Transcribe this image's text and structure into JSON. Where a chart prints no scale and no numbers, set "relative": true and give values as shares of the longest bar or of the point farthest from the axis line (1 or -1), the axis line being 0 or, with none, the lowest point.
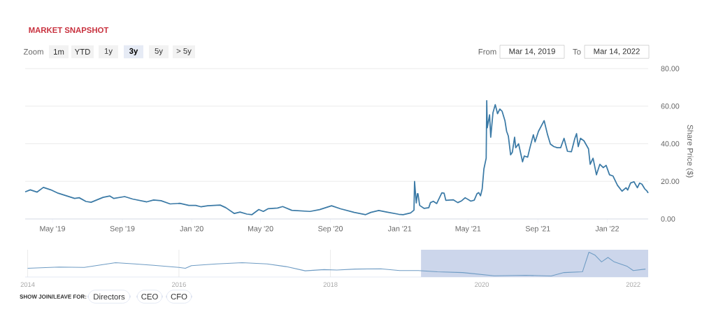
{
  "chart_data": [
    {
      "type": "line",
      "title": "MARKET SNAPSHOT",
      "ylabel": "Share Price ($)",
      "annotations": [
        "Zoom",
        "1m",
        "YTD",
        "1y",
        "3y",
        "5y",
        "> 5y",
        "From",
        "Mar 14, 2019",
        "To",
        "Mar 14, 2022",
        "SHOW JOIN/LEAVE FOR:",
        "Directors",
        "CEO",
        "CFO"
      ],
      "x": [
        "2019-03-14",
        "2019-03-23",
        "2019-04-04",
        "2019-04-15",
        "2019-04-28",
        "2019-05-11",
        "2019-06-09",
        "2019-06-17",
        "2019-06-29",
        "2019-07-08",
        "2019-07-29",
        "2019-08-10",
        "2019-08-17",
        "2019-09-05",
        "2019-09-19",
        "2019-10-14",
        "2019-10-26",
        "2019-11-08",
        "2019-11-24",
        "2019-12-11",
        "2019-12-27",
        "2020-01-08",
        "2020-01-17",
        "2020-01-29",
        "2020-02-20",
        "2020-03-01",
        "2020-03-16",
        "2020-03-26",
        "2020-04-07",
        "2020-04-16",
        "2020-04-28",
        "2020-05-06",
        "2020-05-14",
        "2020-05-31",
        "2020-06-09",
        "2020-06-25",
        "2020-07-11",
        "2020-07-27",
        "2020-08-13",
        "2020-09-03",
        "2020-09-19",
        "2020-10-13",
        "2020-11-02",
        "2020-11-11",
        "2020-11-25",
        "2020-12-09",
        "2020-12-30",
        "2021-01-07",
        "2021-01-20",
        "2021-01-26",
        "2021-01-27",
        "2021-01-30",
        "2021-02-01",
        "2021-02-02",
        "2021-02-05",
        "2021-02-13",
        "2021-02-21",
        "2021-02-24",
        "2021-03-01",
        "2021-03-07",
        "2021-03-16",
        "2021-03-20",
        "2021-03-23",
        "2021-04-05",
        "2021-04-13",
        "2021-04-20",
        "2021-04-26",
        "2021-05-06",
        "2021-05-12",
        "2021-05-17",
        "2021-05-20",
        "2021-05-23",
        "2021-05-26",
        "2021-05-29",
        "2021-06-02",
        "2021-06-03",
        "2021-06-04",
        "2021-06-08",
        "2021-06-10",
        "2021-06-14",
        "2021-06-18",
        "2021-06-22",
        "2021-06-26",
        "2021-06-30",
        "2021-07-05",
        "2021-07-08",
        "2021-07-11",
        "2021-07-15",
        "2021-07-18",
        "2021-07-22",
        "2021-07-24",
        "2021-07-29",
        "2021-08-05",
        "2021-08-08",
        "2021-08-14",
        "2021-08-18",
        "2021-08-24",
        "2021-08-27",
        "2021-09-02",
        "2021-09-12",
        "2021-09-18",
        "2021-09-23",
        "2021-09-29",
        "2021-10-05",
        "2021-10-11",
        "2021-10-17",
        "2021-10-23",
        "2021-10-30",
        "2021-11-05",
        "2021-11-08",
        "2021-11-11",
        "2021-11-15",
        "2021-11-21",
        "2021-11-29",
        "2021-12-02",
        "2021-12-07",
        "2021-12-13",
        "2021-12-19",
        "2021-12-25",
        "2021-12-30",
        "2022-01-05",
        "2022-01-11",
        "2022-01-19",
        "2022-01-27",
        "2022-02-03",
        "2022-02-06",
        "2022-02-11",
        "2022-02-17",
        "2022-02-23",
        "2022-02-27",
        "2022-03-03",
        "2022-03-08",
        "2022-03-12",
        "2022-03-14"
      ],
      "values": [
        14.4,
        15.5,
        14.3,
        16.8,
        15.5,
        13.7,
        10.9,
        11.3,
        9.3,
        8.9,
        11.5,
        12.2,
        10.9,
        11.9,
        10.6,
        9.1,
        10.1,
        9.7,
        8.0,
        8.3,
        7.2,
        7.2,
        6.5,
        7.0,
        7.4,
        6.0,
        2.9,
        3.7,
        2.6,
        2.3,
        5.0,
        4.0,
        5.4,
        5.8,
        6.6,
        4.6,
        4.3,
        4.0,
        5.0,
        7.0,
        5.4,
        3.5,
        2.3,
        3.5,
        4.5,
        3.7,
        2.5,
        2.3,
        3.2,
        4.7,
        20.0,
        8.5,
        13.4,
        13.4,
        7.2,
        5.6,
        6.0,
        8.7,
        9.4,
        8.2,
        13.9,
        13.7,
        9.9,
        10.2,
        8.7,
        9.7,
        11.3,
        9.5,
        10.0,
        13.5,
        14.0,
        12.3,
        16.0,
        26.6,
        32.3,
        62.9,
        48.5,
        55.4,
        43.5,
        56.6,
        60.8,
        56.0,
        58.5,
        57.3,
        52.3,
        46.6,
        44.1,
        34.1,
        35.4,
        43.5,
        37.9,
        40.0,
        30.4,
        33.5,
        32.9,
        37.9,
        44.8,
        41.0,
        46.6,
        52.3,
        44.8,
        39.8,
        38.5,
        37.9,
        37.9,
        42.9,
        36.0,
        35.8,
        42.9,
        45.4,
        38.5,
        42.9,
        41.6,
        37.3,
        29.1,
        32.3,
        23.5,
        29.1,
        27.3,
        28.5,
        23.5,
        22.9,
        17.9,
        14.8,
        16.6,
        15.4,
        19.1,
        19.8,
        16.6,
        19.1,
        18.5,
        16.0,
        14.8,
        13.8
      ],
      "color": "#3b7aa6",
      "xlim": [
        "2019-03-14",
        "2022-03-14"
      ],
      "xticks": [
        {
          "value": "2019-05-01",
          "label": "May '19"
        },
        {
          "value": "2019-09-01",
          "label": "Sep '19"
        },
        {
          "value": "2020-01-01",
          "label": "Jan '20"
        },
        {
          "value": "2020-05-01",
          "label": "May '20"
        },
        {
          "value": "2020-09-01",
          "label": "Sep '20"
        },
        {
          "value": "2021-01-01",
          "label": "Jan '21"
        },
        {
          "value": "2021-05-01",
          "label": "May '21"
        },
        {
          "value": "2021-09-01",
          "label": "Sep '21"
        },
        {
          "value": "2022-01-01",
          "label": "Jan '22"
        }
      ],
      "ylim": [
        0,
        80
      ],
      "yticks": [
        {
          "value": 0,
          "label": "0.00"
        },
        {
          "value": 20,
          "label": "20.00"
        },
        {
          "value": 40,
          "label": "40.00"
        },
        {
          "value": 60,
          "label": "60.00"
        },
        {
          "value": 80,
          "label": "80.00"
        }
      ],
      "grid": "y"
    },
    {
      "type": "line",
      "relative": true,
      "x": [
        "2014-01",
        "2014-06",
        "2014-10",
        "2015-03",
        "2015-06",
        "2015-09",
        "2016-01",
        "2016-02",
        "2016-03",
        "2016-07",
        "2016-11",
        "2017-03",
        "2017-06",
        "2017-09",
        "2017-12",
        "2018-02",
        "2018-05",
        "2018-09",
        "2018-12",
        "2019-03",
        "2019-06",
        "2019-10",
        "2020-03",
        "2020-08",
        "2020-12",
        "2021-02",
        "2021-05",
        "2021-06",
        "2021-07",
        "2021-08",
        "2021-09",
        "2021-10",
        "2021-12",
        "2022-01",
        "2022-03"
      ],
      "values": [
        0.35,
        0.4,
        0.39,
        0.58,
        0.53,
        0.47,
        0.39,
        0.35,
        0.46,
        0.53,
        0.58,
        0.53,
        0.42,
        0.25,
        0.3,
        0.28,
        0.32,
        0.33,
        0.26,
        0.26,
        0.21,
        0.18,
        0.05,
        0.07,
        0.04,
        0.18,
        0.21,
        1,
        0.88,
        0.61,
        0.79,
        0.61,
        0.44,
        0.26,
        0.32
      ],
      "color": "#6f9cc4",
      "xlim": [
        "2013-12-20",
        "2022-03-14"
      ],
      "xticks": [
        {
          "value": "2014-01-01",
          "label": "2014"
        },
        {
          "value": "2016-01-01",
          "label": "2016"
        },
        {
          "value": "2018-01-01",
          "label": "2018"
        },
        {
          "value": "2020-01-01",
          "label": "2020"
        },
        {
          "value": "2022-01-01",
          "label": "2022"
        }
      ],
      "grid": "x",
      "bands": [
        {
          "axis": "x",
          "from": "2019-03-14",
          "to": "2022-03-14",
          "color": "#ccd6eb"
        }
      ]
    }
  ]
}
